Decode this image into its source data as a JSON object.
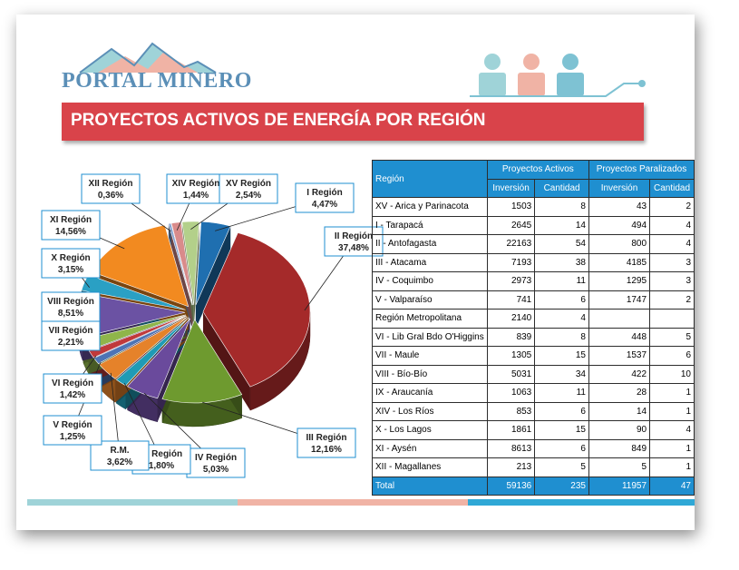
{
  "logo": {
    "text": "PORTAL MINERO"
  },
  "title": "PROYECTOS ACTIVOS DE ENERGÍA POR REGIÓN",
  "colors": {
    "banner": "#d9434a",
    "table_header": "#1f8fd0",
    "logo_blue": "#5b8fb7",
    "stripe_teal": "#9fd3d8",
    "stripe_salmon": "#f0b3a5",
    "stripe_blue": "#2fa8d6"
  },
  "chart_data": {
    "type": "pie",
    "title": "",
    "labels": [
      "I Región",
      "II Región",
      "III Región",
      "IV Región",
      "IX Región",
      "R.M.",
      "V Región",
      "VI Región",
      "VII Región",
      "VIII Región",
      "X Región",
      "XI Región",
      "XII Región",
      "XIV Región",
      "XV Región"
    ],
    "values": [
      4.47,
      37.48,
      12.16,
      5.03,
      1.8,
      3.62,
      1.25,
      1.42,
      2.21,
      8.51,
      3.15,
      14.56,
      0.36,
      1.44,
      2.54
    ],
    "value_labels": [
      "4,47%",
      "37,48%",
      "12,16%",
      "5,03%",
      "1,80%",
      "3,62%",
      "1,25%",
      "1,42%",
      "2,21%",
      "8,51%",
      "3,15%",
      "14,56%",
      "0,36%",
      "1,44%",
      "2,54%"
    ],
    "colors": [
      "#1f6fb0",
      "#a52a2a",
      "#6e9a2f",
      "#6a4a9c",
      "#1f9bb5",
      "#e5822a",
      "#4d74b5",
      "#c0393b",
      "#8fb54a",
      "#6b52a3",
      "#2aa0c4",
      "#f28a20",
      "#7f9fd0",
      "#d98b8b",
      "#b3d08a"
    ]
  },
  "table": {
    "headers": {
      "region": "Región",
      "activos": "Proyectos Activos",
      "paralizados": "Proyectos Paralizados",
      "inversion": "Inversión",
      "cantidad": "Cantidad"
    },
    "rows": [
      {
        "region": "XV - Arica y Parinacota",
        "act_inv": "1503",
        "act_cant": "8",
        "par_inv": "43",
        "par_cant": "2"
      },
      {
        "region": "I - Tarapacá",
        "act_inv": "2645",
        "act_cant": "14",
        "par_inv": "494",
        "par_cant": "4"
      },
      {
        "region": "II - Antofagasta",
        "act_inv": "22163",
        "act_cant": "54",
        "par_inv": "800",
        "par_cant": "4"
      },
      {
        "region": "III - Atacama",
        "act_inv": "7193",
        "act_cant": "38",
        "par_inv": "4185",
        "par_cant": "3"
      },
      {
        "region": "IV - Coquimbo",
        "act_inv": "2973",
        "act_cant": "11",
        "par_inv": "1295",
        "par_cant": "3"
      },
      {
        "region": "V - Valparaíso",
        "act_inv": "741",
        "act_cant": "6",
        "par_inv": "1747",
        "par_cant": "2"
      },
      {
        "region": "Región Metropolitana",
        "act_inv": "2140",
        "act_cant": "4",
        "par_inv": "",
        "par_cant": ""
      },
      {
        "region": "VI - Lib Gral Bdo O'Higgins",
        "act_inv": "839",
        "act_cant": "8",
        "par_inv": "448",
        "par_cant": "5"
      },
      {
        "region": "VII - Maule",
        "act_inv": "1305",
        "act_cant": "15",
        "par_inv": "1537",
        "par_cant": "6"
      },
      {
        "region": "VIII - Bío-Bío",
        "act_inv": "5031",
        "act_cant": "34",
        "par_inv": "422",
        "par_cant": "10"
      },
      {
        "region": "IX - Araucanía",
        "act_inv": "1063",
        "act_cant": "11",
        "par_inv": "28",
        "par_cant": "1"
      },
      {
        "region": "XIV - Los Ríos",
        "act_inv": "853",
        "act_cant": "6",
        "par_inv": "14",
        "par_cant": "1"
      },
      {
        "region": "X - Los Lagos",
        "act_inv": "1861",
        "act_cant": "15",
        "par_inv": "90",
        "par_cant": "4"
      },
      {
        "region": "XI - Aysén",
        "act_inv": "8613",
        "act_cant": "6",
        "par_inv": "849",
        "par_cant": "1"
      },
      {
        "region": "XII - Magallanes",
        "act_inv": "213",
        "act_cant": "5",
        "par_inv": "5",
        "par_cant": "1"
      }
    ],
    "total": {
      "region": "Total",
      "act_inv": "59136",
      "act_cant": "235",
      "par_inv": "11957",
      "par_cant": "47"
    }
  }
}
